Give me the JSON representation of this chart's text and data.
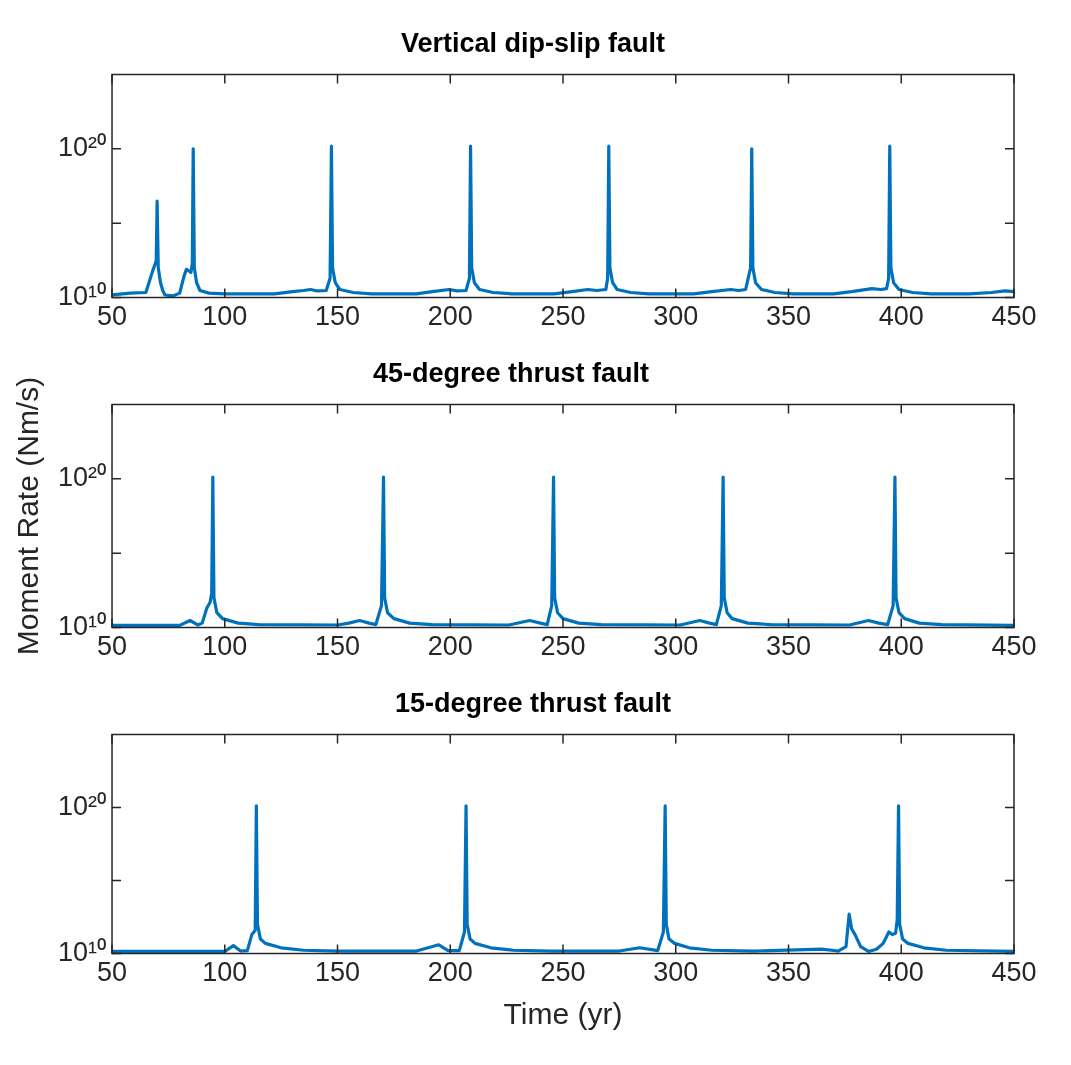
{
  "chart_data": [
    {
      "type": "line",
      "title": "Vertical dip-slip fault",
      "log": "y",
      "grid": false,
      "legend": false,
      "xlim": [
        50,
        450
      ],
      "xticks": [
        50,
        100,
        150,
        200,
        250,
        300,
        350,
        400,
        450
      ],
      "ylim": [
        10000000000.0,
        1e+25
      ],
      "yticks": [
        {
          "value": 10000000000.0,
          "label": "10¹⁰"
        },
        {
          "value": 1000000000000000.0,
          "label": null
        },
        {
          "value": 1e+20,
          "label": "10²⁰"
        }
      ],
      "series": [
        {
          "color": "#0072bd",
          "x": [
            50,
            58,
            65,
            68,
            69.6,
            70,
            70.5,
            71.5,
            72.5,
            73.5,
            77,
            80,
            82,
            83,
            85,
            85.6,
            86,
            86.5,
            87.5,
            89,
            93,
            100,
            122,
            130,
            135,
            138,
            141,
            145,
            146.7,
            147.3,
            147.8,
            149,
            151,
            157,
            165,
            185,
            192,
            199.5,
            203,
            207,
            208.5,
            209,
            209.5,
            210.7,
            213,
            219,
            227,
            246,
            254,
            261,
            265,
            269,
            269.8,
            270.3,
            270.8,
            272,
            274,
            280,
            288,
            308,
            316,
            324.4,
            328,
            331,
            332.7,
            333.2,
            333.7,
            334.2,
            335.4,
            338,
            344,
            352,
            370,
            378,
            387,
            391,
            393.5,
            394.4,
            394.9,
            395.4,
            396.6,
            399,
            405,
            413,
            430,
            440,
            446,
            450
          ],
          "values": [
            15000000000.0,
            20000000000.0,
            22000000000.0,
            600000000000.0,
            3000000000000.0,
            3e+16,
            1000000000000.0,
            100000000000.0,
            30000000000.0,
            15000000000.0,
            13000000000.0,
            20000000000.0,
            300000000000.0,
            800000000000.0,
            500000000000.0,
            2000000000000.0,
            1e+20,
            1000000000000.0,
            100000000000.0,
            30000000000.0,
            20000000000.0,
            18000000000.0,
            18000000000.0,
            25000000000.0,
            30000000000.0,
            35000000000.0,
            28000000000.0,
            30000000000.0,
            200000000000.0,
            1.5e+20,
            1000000000000.0,
            100000000000.0,
            35000000000.0,
            22000000000.0,
            18000000000.0,
            18000000000.0,
            25000000000.0,
            35000000000.0,
            28000000000.0,
            30000000000.0,
            200000000000.0,
            1.5e+20,
            1000000000000.0,
            100000000000.0,
            35000000000.0,
            22000000000.0,
            18000000000.0,
            18000000000.0,
            25000000000.0,
            35000000000.0,
            30000000000.0,
            35000000000.0,
            200000000000.0,
            1.5e+20,
            1000000000000.0,
            100000000000.0,
            35000000000.0,
            22000000000.0,
            18000000000.0,
            18000000000.0,
            25000000000.0,
            35000000000.0,
            30000000000.0,
            35000000000.0,
            500000000000.0,
            1000000000000.0,
            1e+20,
            1000000000000.0,
            100000000000.0,
            35000000000.0,
            22000000000.0,
            18000000000.0,
            18000000000.0,
            25000000000.0,
            40000000000.0,
            35000000000.0,
            40000000000.0,
            200000000000.0,
            1.5e+20,
            1000000000000.0,
            100000000000.0,
            35000000000.0,
            22000000000.0,
            18000000000.0,
            18000000000.0,
            22000000000.0,
            28000000000.0,
            25000000000.0
          ]
        }
      ]
    },
    {
      "type": "line",
      "title": "45-degree thrust fault",
      "ylabel": "Moment Rate (Nm/s)",
      "log": "y",
      "grid": false,
      "legend": false,
      "xlim": [
        50,
        450
      ],
      "xticks": [
        50,
        100,
        150,
        200,
        250,
        300,
        350,
        400,
        450
      ],
      "ylim": [
        10000000000.0,
        1e+25
      ],
      "yticks": [
        {
          "value": 10000000000.0,
          "label": "10¹⁰"
        },
        {
          "value": 1000000000000000.0,
          "label": null
        },
        {
          "value": 1e+20,
          "label": "10²⁰"
        }
      ],
      "series": [
        {
          "color": "#0072bd",
          "x": [
            50,
            80,
            84.6,
            88,
            90,
            92,
            93.5,
            94.2,
            94.7,
            95.2,
            96.5,
            99,
            106,
            115,
            150,
            155,
            159.8,
            164,
            167,
            169.5,
            170.4,
            170.9,
            172.2,
            175,
            182,
            192,
            226,
            235.2,
            240,
            243,
            245,
            245.8,
            246.3,
            247.6,
            250,
            257,
            267,
            302,
            310.6,
            315,
            318,
            320.2,
            321,
            321.5,
            322.8,
            325,
            332,
            342,
            377,
            385.5,
            390,
            394,
            396.4,
            397.2,
            397.7,
            399,
            401.5,
            408,
            418,
            450
          ],
          "values": [
            14000000000.0,
            14000000000.0,
            30000000000.0,
            15000000000.0,
            20000000000.0,
            200000000000.0,
            500000000000.0,
            2000000000000.0,
            1.3e+20,
            1000000000000.0,
            100000000000.0,
            40000000000.0,
            20000000000.0,
            16000000000.0,
            15000000000.0,
            20000000000.0,
            30000000000.0,
            20000000000.0,
            16000000000.0,
            300000000000.0,
            1.3e+20,
            1000000000000.0,
            100000000000.0,
            40000000000.0,
            20000000000.0,
            16000000000.0,
            15000000000.0,
            30000000000.0,
            20000000000.0,
            16000000000.0,
            300000000000.0,
            1.3e+20,
            1000000000000.0,
            100000000000.0,
            40000000000.0,
            20000000000.0,
            16000000000.0,
            15000000000.0,
            30000000000.0,
            20000000000.0,
            16000000000.0,
            300000000000.0,
            1.3e+20,
            1000000000000.0,
            100000000000.0,
            40000000000.0,
            20000000000.0,
            16000000000.0,
            15000000000.0,
            30000000000.0,
            20000000000.0,
            16000000000.0,
            300000000000.0,
            1.3e+20,
            1000000000000.0,
            100000000000.0,
            40000000000.0,
            20000000000.0,
            16000000000.0,
            14000000000.0
          ]
        }
      ]
    },
    {
      "type": "line",
      "title": "15-degree thrust fault",
      "xlabel": "Time (yr)",
      "log": "y",
      "grid": false,
      "legend": false,
      "xlim": [
        50,
        450
      ],
      "xticks": [
        50,
        100,
        150,
        200,
        250,
        300,
        350,
        400,
        450
      ],
      "ylim": [
        10000000000.0,
        1e+25
      ],
      "yticks": [
        {
          "value": 10000000000.0,
          "label": "10¹⁰"
        },
        {
          "value": 1000000000000000.0,
          "label": null
        },
        {
          "value": 1e+20,
          "label": "10²⁰"
        }
      ],
      "series": [
        {
          "color": "#0072bd",
          "x": [
            50,
            100,
            103.8,
            107,
            110,
            112,
            113.5,
            114,
            114.5,
            115.8,
            118,
            125,
            135,
            150,
            185,
            194.9,
            199,
            204,
            206.3,
            207,
            207.5,
            208.8,
            211,
            218,
            228,
            245,
            275,
            284,
            292,
            294.5,
            295.3,
            295.8,
            297,
            299.5,
            306,
            316,
            335,
            364.7,
            372,
            375.5,
            376.9,
            378,
            379.5,
            382,
            385.5,
            389,
            392,
            394.5,
            396,
            397.5,
            398.2,
            398.8,
            399.3,
            400.6,
            403,
            410,
            420,
            450
          ],
          "values": [
            14000000000.0,
            14000000000.0,
            35000000000.0,
            15000000000.0,
            16000000000.0,
            200000000000.0,
            400000000000.0,
            1.3e+20,
            1000000000000.0,
            100000000000.0,
            50000000000.0,
            25000000000.0,
            17000000000.0,
            15000000000.0,
            15000000000.0,
            40000000000.0,
            16000000000.0,
            16000000000.0,
            300000000000.0,
            1.3e+20,
            1000000000000.0,
            100000000000.0,
            50000000000.0,
            25000000000.0,
            17000000000.0,
            15000000000.0,
            15000000000.0,
            25000000000.0,
            16000000000.0,
            300000000000.0,
            1.3e+20,
            1000000000000.0,
            100000000000.0,
            50000000000.0,
            25000000000.0,
            17000000000.0,
            15000000000.0,
            20000000000.0,
            15000000000.0,
            30000000000.0,
            5000000000000.0,
            500000000000.0,
            200000000000.0,
            30000000000.0,
            14000000000.0,
            20000000000.0,
            50000000000.0,
            300000000000.0,
            200000000000.0,
            250000000000.0,
            2000000000000.0,
            1.3e+20,
            1000000000000.0,
            100000000000.0,
            50000000000.0,
            25000000000.0,
            17000000000.0,
            14000000000.0
          ]
        }
      ]
    }
  ]
}
